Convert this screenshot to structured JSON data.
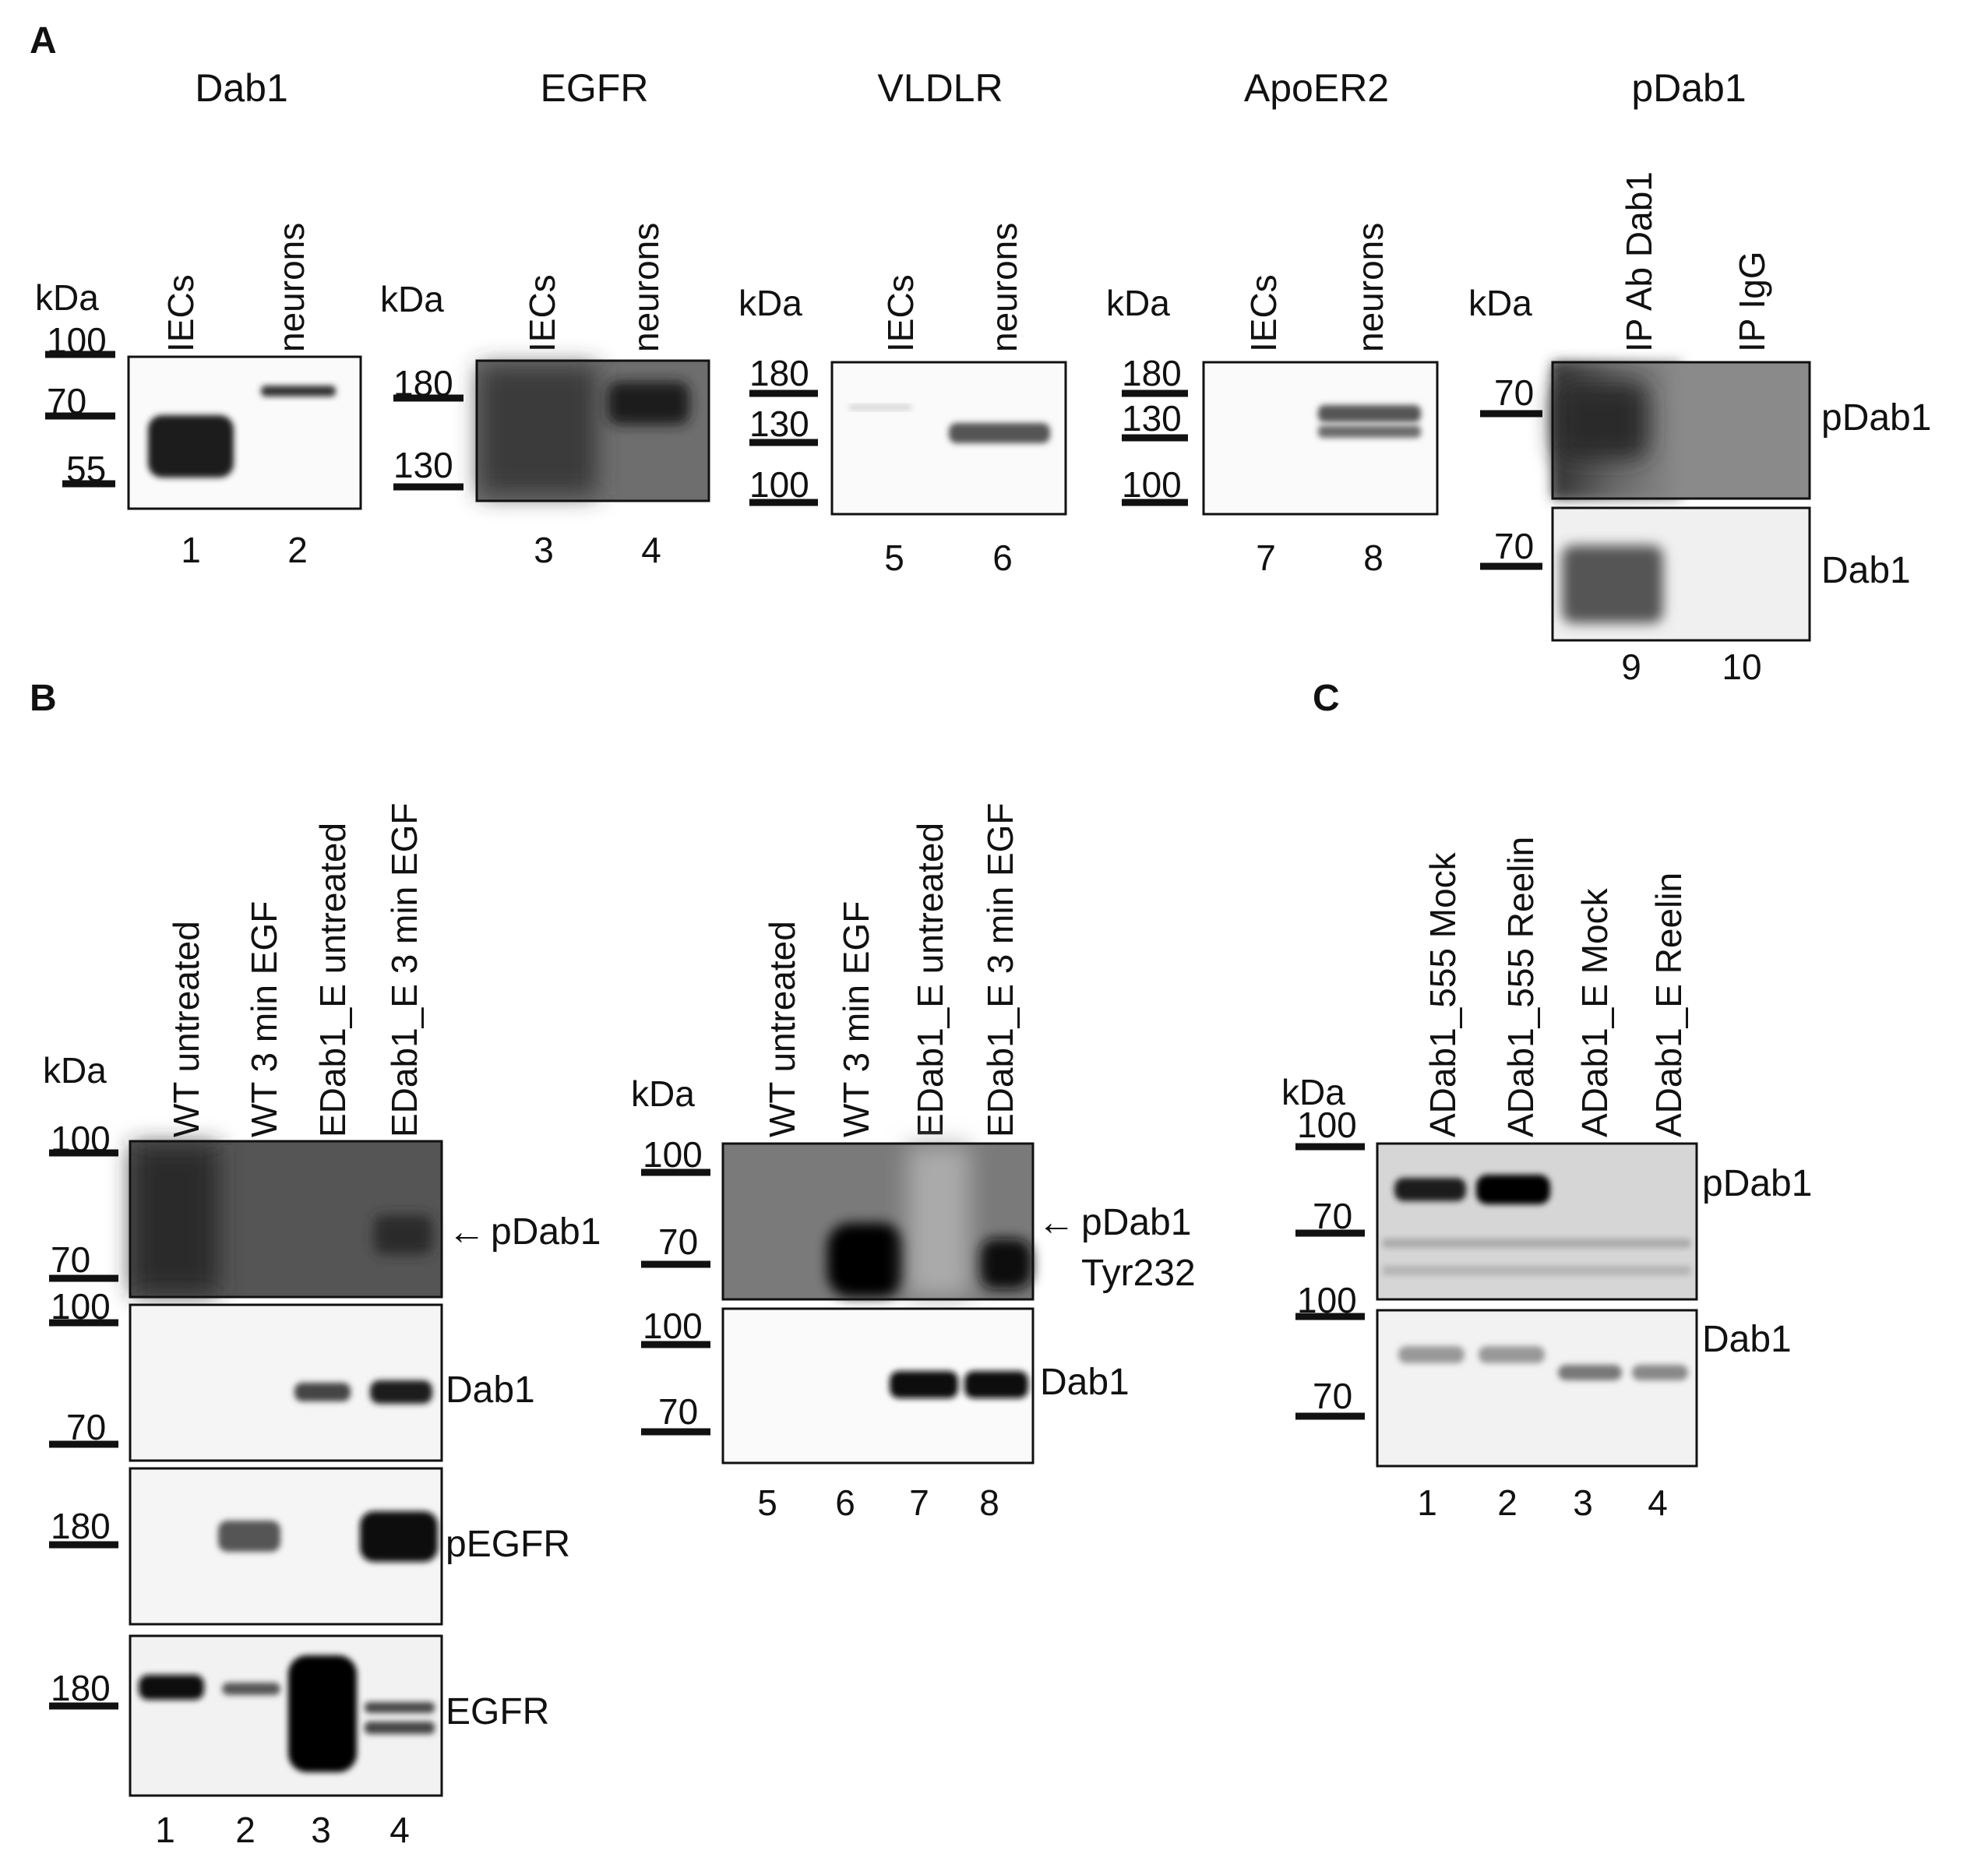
{
  "panels": {
    "A": {
      "label": "A",
      "sub_blots": [
        {
          "title": "Dab1",
          "kda": "kDa",
          "lanes": [
            "IECs",
            "neurons"
          ],
          "lane_numbers": [
            "1",
            "2"
          ],
          "markers": [
            "100",
            "70",
            "55"
          ]
        },
        {
          "title": "EGFR",
          "kda": "kDa",
          "lanes": [
            "IECs",
            "neurons"
          ],
          "lane_numbers": [
            "3",
            "4"
          ],
          "markers": [
            "180",
            "130"
          ]
        },
        {
          "title": "VLDLR",
          "kda": "kDa",
          "lanes": [
            "IECs",
            "neurons"
          ],
          "lane_numbers": [
            "5",
            "6"
          ],
          "markers": [
            "180",
            "130",
            "100"
          ]
        },
        {
          "title": "ApoER2",
          "kda": "kDa",
          "lanes": [
            "IECs",
            "neurons"
          ],
          "lane_numbers": [
            "7",
            "8"
          ],
          "markers": [
            "180",
            "130",
            "100"
          ]
        },
        {
          "title": "pDab1",
          "kda": "kDa",
          "lanes": [
            "IP Ab Dab1",
            "IP IgG"
          ],
          "lane_numbers": [
            "9",
            "10"
          ],
          "markers": [
            "70",
            "70"
          ],
          "row_labels": [
            "pDab1",
            "Dab1"
          ]
        }
      ]
    },
    "B": {
      "label": "B",
      "left": {
        "kda": "kDa",
        "lanes": [
          "WT untreated",
          "WT 3 min EGF",
          "EDab1_E untreated",
          "EDab1_E 3 min EGF"
        ],
        "lane_numbers": [
          "1",
          "2",
          "3",
          "4"
        ],
        "row_labels": [
          "pDab1",
          "Dab1",
          "pEGFR",
          "EGFR"
        ],
        "markers": [
          "100",
          "70",
          "100",
          "70",
          "180",
          "180"
        ],
        "arrow": "←"
      },
      "right": {
        "kda": "kDa",
        "lanes": [
          "WT untreated",
          "WT 3 min EGF",
          "EDab1_E untreated",
          "EDab1_E 3 min EGF"
        ],
        "lane_numbers": [
          "5",
          "6",
          "7",
          "8"
        ],
        "row_labels": [
          "pDab1",
          "Tyr232",
          "Dab1"
        ],
        "markers": [
          "100",
          "70",
          "100",
          "70"
        ],
        "arrow": "←"
      }
    },
    "C": {
      "label": "C",
      "kda": "kDa",
      "lanes": [
        "ADab1_555 Mock",
        "ADab1_555 Reelin",
        "ADab1_E Mock",
        "ADab1_E Reelin"
      ],
      "lane_numbers": [
        "1",
        "2",
        "3",
        "4"
      ],
      "row_labels": [
        "pDab1",
        "Dab1"
      ],
      "markers": [
        "100",
        "70",
        "100",
        "70"
      ]
    }
  }
}
